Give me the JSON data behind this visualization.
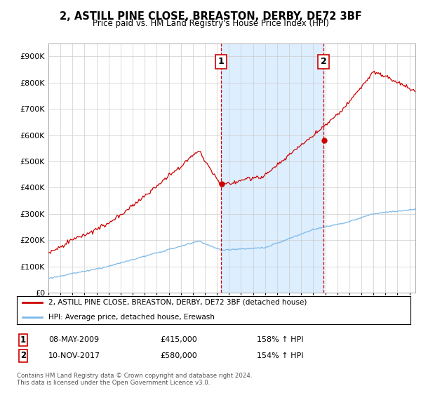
{
  "title": "2, ASTILL PINE CLOSE, BREASTON, DERBY, DE72 3BF",
  "subtitle": "Price paid vs. HM Land Registry's House Price Index (HPI)",
  "legend_line1": "2, ASTILL PINE CLOSE, BREASTON, DERBY, DE72 3BF (detached house)",
  "legend_line2": "HPI: Average price, detached house, Erewash",
  "footnote": "Contains HM Land Registry data © Crown copyright and database right 2024.\nThis data is licensed under the Open Government Licence v3.0.",
  "annotation1_label": "1",
  "annotation1_date": "08-MAY-2009",
  "annotation1_price": "£415,000",
  "annotation1_hpi": "158% ↑ HPI",
  "annotation1_year": 2009.36,
  "annotation1_value": 415000,
  "annotation2_label": "2",
  "annotation2_date": "10-NOV-2017",
  "annotation2_price": "£580,000",
  "annotation2_hpi": "154% ↑ HPI",
  "annotation2_year": 2017.86,
  "annotation2_value": 580000,
  "hpi_color": "#7ab8e8",
  "price_color": "#cc0000",
  "vline_color": "#cc0000",
  "shade_color": "#ddeeff",
  "background_color": "#ffffff",
  "ylim": [
    0,
    950000
  ],
  "yticks": [
    0,
    100000,
    200000,
    300000,
    400000,
    500000,
    600000,
    700000,
    800000,
    900000
  ],
  "xlim_start": 1995.0,
  "xlim_end": 2025.5
}
